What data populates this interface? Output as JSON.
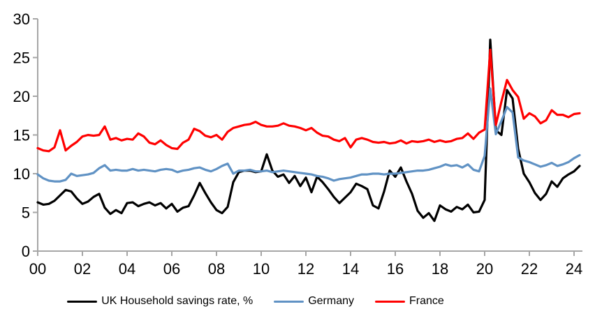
{
  "chart_data": {
    "type": "line",
    "title": "",
    "xlabel": "",
    "ylabel": "",
    "x_start": 2000,
    "x_step": 0.25,
    "xlim": [
      2000,
      2024.5
    ],
    "ylim": [
      0,
      30
    ],
    "grid": false,
    "legend_position": "bottom",
    "x_axis": {
      "tick_labels": [
        "00",
        "02",
        "04",
        "06",
        "08",
        "10",
        "12",
        "14",
        "16",
        "18",
        "20",
        "22",
        "24"
      ],
      "tick_years": [
        2000,
        2002,
        2004,
        2006,
        2008,
        2010,
        2012,
        2014,
        2016,
        2018,
        2020,
        2022,
        2024
      ]
    },
    "y_axis": {
      "ticks": [
        0,
        5,
        10,
        15,
        20,
        25,
        30
      ]
    },
    "series": [
      {
        "name": "UK Household savings rate, %",
        "color": "#000000",
        "values": [
          6.3,
          6.0,
          6.1,
          6.5,
          7.2,
          7.9,
          7.7,
          6.8,
          6.1,
          6.4,
          7.0,
          7.4,
          5.6,
          4.8,
          5.3,
          4.9,
          6.2,
          6.3,
          5.8,
          6.1,
          6.3,
          5.9,
          6.2,
          5.5,
          6.1,
          5.1,
          5.6,
          5.8,
          7.2,
          8.8,
          7.5,
          6.3,
          5.3,
          4.9,
          5.7,
          8.9,
          10.2,
          10.4,
          10.4,
          10.2,
          10.3,
          12.5,
          10.4,
          9.6,
          9.9,
          8.8,
          9.7,
          8.4,
          9.5,
          7.6,
          9.6,
          8.9,
          8.0,
          7.0,
          6.2,
          6.9,
          7.6,
          8.7,
          8.4,
          8.0,
          5.9,
          5.5,
          7.7,
          10.4,
          9.6,
          10.8,
          9.0,
          7.4,
          5.2,
          4.3,
          4.9,
          3.9,
          5.9,
          5.4,
          5.1,
          5.7,
          5.4,
          6.0,
          5.0,
          5.1,
          6.6,
          27.3,
          15.6,
          15.0,
          20.8,
          19.7,
          13.2,
          10.0,
          8.9,
          7.5,
          6.6,
          7.4,
          9.0,
          8.3,
          9.4,
          9.9,
          10.3,
          11.0
        ]
      },
      {
        "name": "Germany",
        "color": "#6092C4",
        "values": [
          9.9,
          9.4,
          9.1,
          9.0,
          9.0,
          9.2,
          10.0,
          9.7,
          9.8,
          9.9,
          10.1,
          10.7,
          11.1,
          10.4,
          10.5,
          10.4,
          10.4,
          10.6,
          10.4,
          10.5,
          10.4,
          10.3,
          10.5,
          10.6,
          10.5,
          10.2,
          10.4,
          10.5,
          10.7,
          10.8,
          10.5,
          10.3,
          10.6,
          11.0,
          11.3,
          10.0,
          10.4,
          10.4,
          10.5,
          10.3,
          10.3,
          10.4,
          10.2,
          10.3,
          10.4,
          10.3,
          10.2,
          10.1,
          10.0,
          9.9,
          9.7,
          9.6,
          9.4,
          9.1,
          9.3,
          9.4,
          9.5,
          9.7,
          9.9,
          9.9,
          10.0,
          10.0,
          9.9,
          10.0,
          10.0,
          10.1,
          10.2,
          10.3,
          10.4,
          10.4,
          10.5,
          10.7,
          10.9,
          11.2,
          11.0,
          11.1,
          10.8,
          11.2,
          10.5,
          10.3,
          12.3,
          21.0,
          15.1,
          16.8,
          18.6,
          17.9,
          12.1,
          11.7,
          11.5,
          11.2,
          10.9,
          11.1,
          11.4,
          11.0,
          11.2,
          11.5,
          12.0,
          12.4
        ]
      },
      {
        "name": "France",
        "color": "#FF0000",
        "values": [
          13.3,
          13.0,
          12.9,
          13.4,
          15.6,
          13.0,
          13.6,
          14.1,
          14.8,
          15.0,
          14.9,
          15.0,
          16.1,
          14.4,
          14.6,
          14.3,
          14.5,
          14.4,
          15.2,
          14.8,
          14.0,
          13.8,
          14.3,
          13.7,
          13.3,
          13.2,
          14.0,
          14.4,
          15.8,
          15.5,
          14.9,
          14.7,
          15.0,
          14.4,
          15.4,
          15.9,
          16.1,
          16.3,
          16.4,
          16.7,
          16.3,
          16.1,
          16.1,
          16.2,
          16.5,
          16.2,
          16.1,
          15.9,
          15.6,
          15.9,
          15.3,
          14.9,
          14.8,
          14.4,
          14.2,
          14.6,
          13.4,
          14.4,
          14.6,
          14.4,
          14.1,
          14.0,
          14.1,
          13.9,
          14.0,
          14.3,
          13.9,
          14.2,
          14.1,
          14.2,
          14.4,
          14.1,
          14.3,
          14.1,
          14.2,
          14.5,
          14.6,
          15.2,
          14.5,
          15.3,
          15.7,
          26.0,
          16.3,
          19.3,
          22.1,
          20.8,
          19.9,
          17.1,
          17.8,
          17.4,
          16.5,
          16.9,
          18.2,
          17.6,
          17.6,
          17.3,
          17.7,
          17.8
        ]
      }
    ]
  },
  "legend": {
    "items": [
      {
        "label": "UK Household savings rate, %",
        "color": "#000000"
      },
      {
        "label": "Germany",
        "color": "#6092C4"
      },
      {
        "label": "France",
        "color": "#FF0000"
      }
    ]
  },
  "colors": {
    "axis": "#A6A6A6",
    "text": "#000000",
    "background": "#FFFFFF"
  }
}
